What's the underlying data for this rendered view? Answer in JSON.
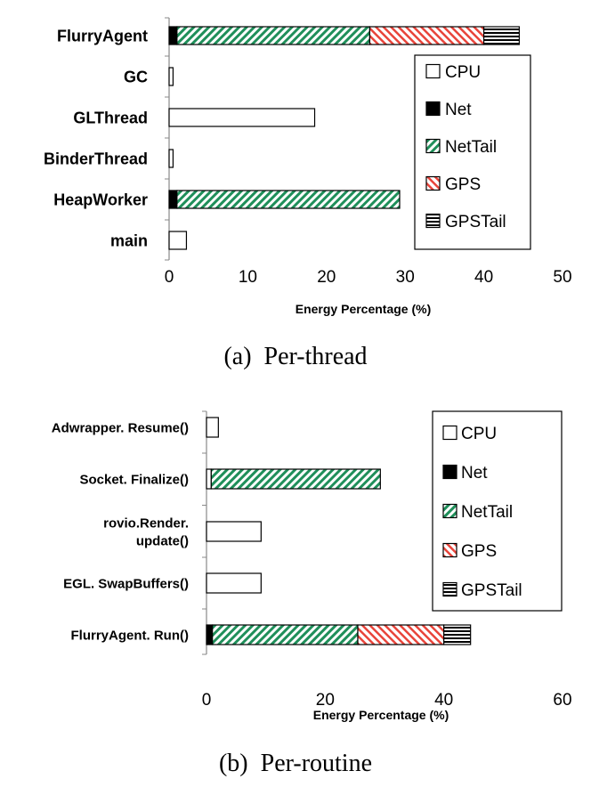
{
  "chart_data": [
    {
      "type": "bar",
      "orientation": "horizontal",
      "stacked": true,
      "caption": "(a)  Per-thread",
      "xlabel": "Energy Percentage (%)",
      "xlim": [
        0,
        50
      ],
      "xticks": [
        "0",
        "10",
        "20",
        "30",
        "40",
        "50"
      ],
      "categories": [
        "FlurryAgent",
        "GC",
        "GLThread",
        "BinderThread",
        "HeapWorker",
        "main"
      ],
      "series": [
        {
          "name": "CPU",
          "values": [
            0,
            0.5,
            18.5,
            0.5,
            0,
            2.2
          ]
        },
        {
          "name": "Net",
          "values": [
            1.0,
            0,
            0,
            0,
            1.0,
            0
          ]
        },
        {
          "name": "NetTail",
          "values": [
            24.5,
            0,
            0,
            0,
            28.3,
            0
          ]
        },
        {
          "name": "GPS",
          "values": [
            14.5,
            0,
            0,
            0,
            0,
            0
          ]
        },
        {
          "name": "GPSTail",
          "values": [
            4.5,
            0,
            0,
            0,
            0,
            0
          ]
        }
      ],
      "legend_position": "right"
    },
    {
      "type": "bar",
      "orientation": "horizontal",
      "stacked": true,
      "caption": "(b)  Per-routine",
      "xlabel": "Energy Percentage (%)",
      "xlim": [
        0,
        60
      ],
      "xticks": [
        "0",
        "20",
        "40",
        "60"
      ],
      "categories": [
        "Adwrapper. Resume()",
        "Socket. Finalize()",
        "rovio.Render.\nupdate()",
        "EGL. SwapBuffers()",
        "FlurryAgent. Run()"
      ],
      "series": [
        {
          "name": "CPU",
          "values": [
            2.0,
            0.8,
            9.2,
            9.2,
            0
          ]
        },
        {
          "name": "Net",
          "values": [
            0,
            0,
            0,
            0,
            1.0
          ]
        },
        {
          "name": "NetTail",
          "values": [
            0,
            28.5,
            0,
            0,
            24.5
          ]
        },
        {
          "name": "GPS",
          "values": [
            0,
            0,
            0,
            0,
            14.5
          ]
        },
        {
          "name": "GPSTail",
          "values": [
            0,
            0,
            0,
            0,
            4.5
          ]
        }
      ],
      "legend_position": "right"
    }
  ]
}
